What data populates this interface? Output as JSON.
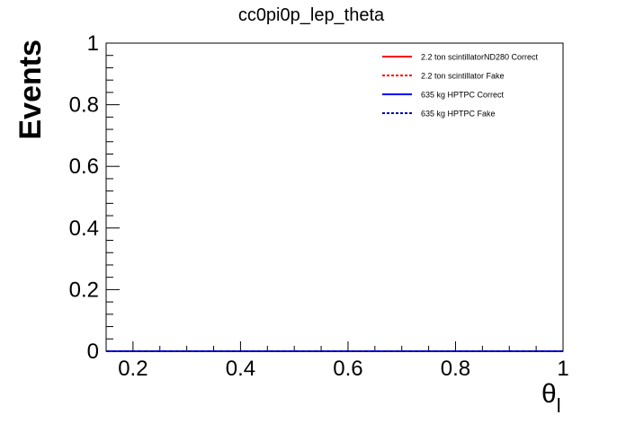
{
  "chart_data": {
    "type": "line",
    "title": "cc0pi0p_lep_theta",
    "xlabel": "θ",
    "xlabel_subscript": "l",
    "ylabel": "Events",
    "xlim": [
      0.15,
      1.0
    ],
    "ylim": [
      0,
      1
    ],
    "x_ticks": [
      0.2,
      0.4,
      0.6,
      0.8,
      1
    ],
    "x_tick_labels": [
      "0.2",
      "0.4",
      "0.6",
      "0.8",
      "1"
    ],
    "y_ticks": [
      0,
      0.2,
      0.4,
      0.6,
      0.8,
      1
    ],
    "y_tick_labels": [
      "0",
      "0.2",
      "0.4",
      "0.6",
      "0.8",
      "1"
    ],
    "grid": false,
    "legend_position": "top-right",
    "series": [
      {
        "name": "2.2 ton scintillatorND280 Correct",
        "color": "#ff0000",
        "style": "solid",
        "x": [
          0.15,
          1.0
        ],
        "y": [
          0,
          0
        ]
      },
      {
        "name": "2.2 ton scintillator Fake",
        "color": "#ff0000",
        "style": "dashed",
        "x": [
          0.15,
          1.0
        ],
        "y": [
          0,
          0
        ]
      },
      {
        "name": "635 kg HPTPC Correct",
        "color": "#0000ff",
        "style": "solid",
        "x": [
          0.15,
          1.0
        ],
        "y": [
          0,
          0
        ]
      },
      {
        "name": "635 kg HPTPC Fake",
        "color": "#000099",
        "style": "dashed",
        "x": [
          0.15,
          1.0
        ],
        "y": [
          0,
          0
        ]
      }
    ]
  }
}
